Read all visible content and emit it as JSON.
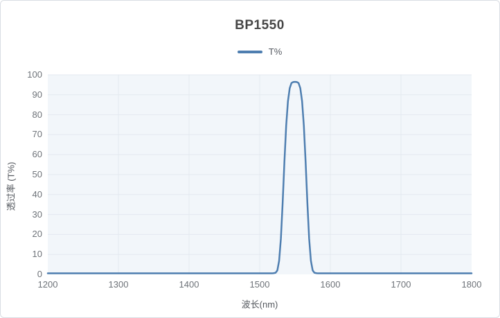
{
  "title": "BP1550",
  "legend": {
    "label": "T%"
  },
  "colors": {
    "line": "#4e7eb0",
    "plot_bg": "#f2f6fa",
    "grid": "#e4e9f0",
    "border": "#d9dde3",
    "title_text": "#464646",
    "tick_text": "#6d7278",
    "axis_label_text": "#55595f"
  },
  "chart_data": {
    "type": "line",
    "title": "BP1550",
    "xlabel": "波长(nm)",
    "ylabel": "透过率 (T%)",
    "xlim": [
      1200,
      1800
    ],
    "ylim": [
      0,
      100
    ],
    "x_ticks": [
      1200,
      1300,
      1400,
      1500,
      1600,
      1700,
      1800
    ],
    "y_ticks": [
      0,
      10,
      20,
      30,
      40,
      50,
      60,
      70,
      80,
      90,
      100
    ],
    "grid": true,
    "legend_position": "top",
    "series": [
      {
        "name": "T%",
        "points": [
          [
            1200,
            0.5
          ],
          [
            1250,
            0.5
          ],
          [
            1300,
            0.5
          ],
          [
            1350,
            0.5
          ],
          [
            1400,
            0.5
          ],
          [
            1450,
            0.5
          ],
          [
            1500,
            0.5
          ],
          [
            1510,
            0.5
          ],
          [
            1515,
            0.5
          ],
          [
            1517.5,
            0.5
          ],
          [
            1520,
            0.6
          ],
          [
            1522.5,
            0.8
          ],
          [
            1525,
            2.0
          ],
          [
            1527.5,
            6.8
          ],
          [
            1530,
            17.9
          ],
          [
            1532.5,
            35.8
          ],
          [
            1535,
            56.4
          ],
          [
            1537.5,
            74.5
          ],
          [
            1540,
            86.8
          ],
          [
            1542.5,
            93.3
          ],
          [
            1545,
            95.9
          ],
          [
            1547.5,
            96.4
          ],
          [
            1550,
            96.5
          ],
          [
            1552.5,
            96.4
          ],
          [
            1555,
            95.9
          ],
          [
            1557.5,
            93.3
          ],
          [
            1560,
            86.8
          ],
          [
            1562.5,
            74.5
          ],
          [
            1565,
            56.4
          ],
          [
            1567.5,
            35.8
          ],
          [
            1570,
            17.9
          ],
          [
            1572.5,
            6.8
          ],
          [
            1575,
            2.0
          ],
          [
            1577.5,
            0.8
          ],
          [
            1580,
            0.6
          ],
          [
            1582.5,
            0.5
          ],
          [
            1585,
            0.5
          ],
          [
            1590,
            0.5
          ],
          [
            1600,
            0.5
          ],
          [
            1650,
            0.5
          ],
          [
            1700,
            0.5
          ],
          [
            1750,
            0.5
          ],
          [
            1800,
            0.5
          ]
        ]
      }
    ]
  }
}
